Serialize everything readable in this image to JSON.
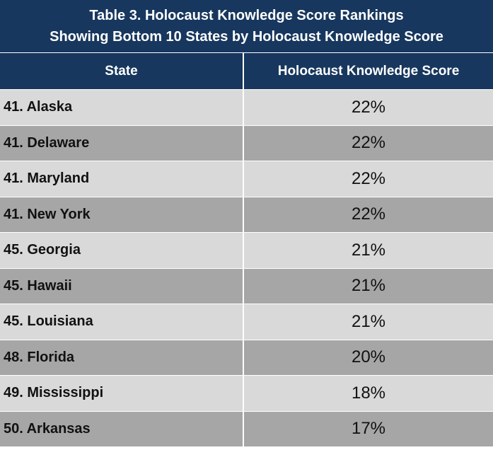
{
  "title": {
    "line1": "Table 3. Holocaust Knowledge Score Rankings",
    "line2": "Showing Bottom 10 States by Holocaust Knowledge Score"
  },
  "colors": {
    "header_bg": "#17375e",
    "header_text": "#ffffff",
    "row_light": "#d9d9d9",
    "row_dark": "#a6a6a6"
  },
  "chart_data": {
    "type": "table",
    "title": "Table 3. Holocaust Knowledge Score Rankings",
    "subtitle": "Showing Bottom 10 States by Holocaust Knowledge Score",
    "columns": [
      "State",
      "Holocaust Knowledge Score"
    ],
    "rows": [
      {
        "state": "41. Alaska",
        "score": "22%",
        "value": 22
      },
      {
        "state": "41. Delaware",
        "score": "22%",
        "value": 22
      },
      {
        "state": "41. Maryland",
        "score": "22%",
        "value": 22
      },
      {
        "state": "41. New York",
        "score": "22%",
        "value": 22
      },
      {
        "state": "45. Georgia",
        "score": "21%",
        "value": 21
      },
      {
        "state": "45. Hawaii",
        "score": "21%",
        "value": 21
      },
      {
        "state": "45. Louisiana",
        "score": "21%",
        "value": 21
      },
      {
        "state": "48. Florida",
        "score": "20%",
        "value": 20
      },
      {
        "state": "49. Mississippi",
        "score": "18%",
        "value": 18
      },
      {
        "state": "50. Arkansas",
        "score": "17%",
        "value": 17
      }
    ]
  }
}
